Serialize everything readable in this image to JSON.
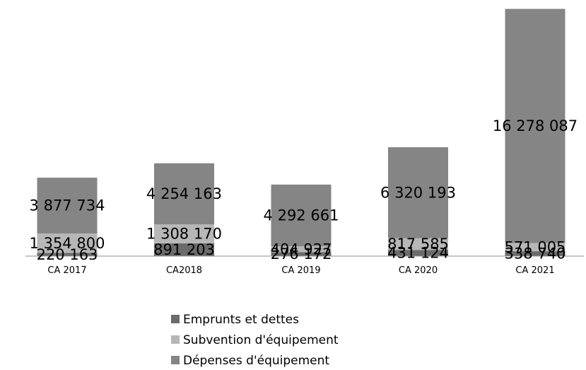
{
  "chart_data": {
    "type": "bar",
    "stacked": true,
    "categories": [
      "CA 2017",
      "CA2018",
      "CA 2019",
      "CA 2020",
      "CA 2021"
    ],
    "series": [
      {
        "name": "Emprunts et dettes",
        "color": "#6b6b6b",
        "values": [
          220163,
          891203,
          276172,
          431124,
          338740
        ]
      },
      {
        "name": "Subvention d'équipement",
        "color": "#b7b7b7",
        "values": [
          1354800,
          1308170,
          404927,
          817585,
          571005
        ]
      },
      {
        "name": "Dépenses d'équipement",
        "color": "#858585",
        "values": [
          3877734,
          4254163,
          4292661,
          6320193,
          16278087
        ]
      }
    ],
    "labels": [
      [
        "220 163",
        "891 203",
        "276 172",
        "431 124",
        "338 740"
      ],
      [
        "1 354 800",
        "1 308 170",
        "404 927",
        "817 585",
        "571 005"
      ],
      [
        "3 877 734",
        "4 254 163",
        "4 292 661",
        "6 320 193",
        "16 278 087"
      ]
    ],
    "ylim": [
      0,
      17500000
    ],
    "grid": false,
    "legend_position": "bottom",
    "title": "",
    "xlabel": "",
    "ylabel": ""
  }
}
